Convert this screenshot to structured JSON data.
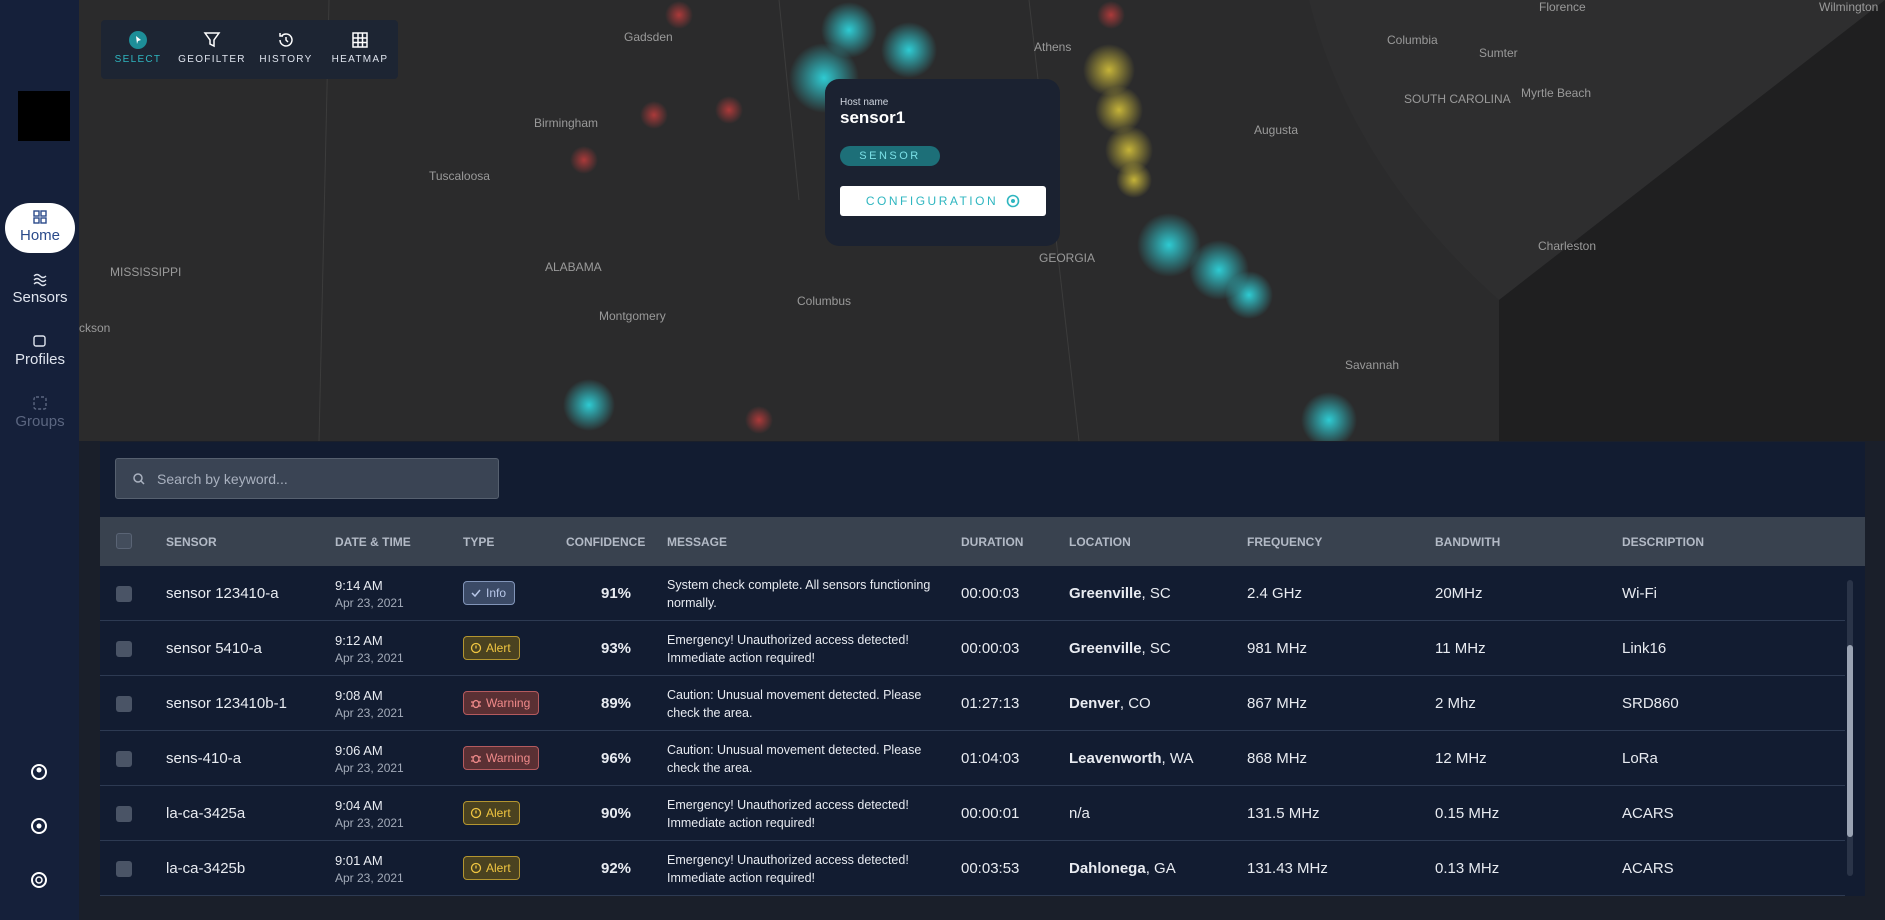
{
  "sidebar": {
    "items": [
      "Home",
      "Sensors",
      "Profiles",
      "Groups"
    ]
  },
  "toolbar": {
    "items": [
      "SELECT",
      "GEOFILTER",
      "HISTORY",
      "HEATMAP"
    ]
  },
  "map": {
    "labels": [
      "Florence",
      "Wilmington",
      "Gadsden",
      "Athens",
      "Columbia",
      "Sumter",
      "Myrtle Beach",
      "Birmingham",
      "Augusta",
      "SOUTH CAROLINA",
      "Tuscaloosa",
      "Charleston",
      "MISSISSIPPI",
      "ALABAMA",
      "GEORGIA",
      "Columbus",
      "Montgomery",
      "Savannah",
      "ckson"
    ]
  },
  "popup": {
    "host_label": "Host name",
    "host_name": "sensor1",
    "badge": "SENSOR",
    "button": "CONFIGURATION"
  },
  "search": {
    "placeholder": "Search by keyword..."
  },
  "table": {
    "headers": [
      "SENSOR",
      "DATE & TIME",
      "TYPE",
      "CONFIDENCE",
      "MESSAGE",
      "DURATION",
      "LOCATION",
      "FREQUENCY",
      "BANDWITH",
      "DESCRIPTION"
    ],
    "rows": [
      {
        "sensor": "sensor 123410-a",
        "time": "9:14 AM",
        "date": "Apr 23, 2021",
        "type": "Info",
        "confidence": "91%",
        "message": "System check complete. All sensors functioning normally.",
        "duration": "00:00:03",
        "location": {
          "city": "Greenville",
          "rest": ", SC"
        },
        "frequency": "2.4 GHz",
        "bandwidth": "20MHz",
        "description": "Wi-Fi"
      },
      {
        "sensor": "sensor 5410-a",
        "time": "9:12 AM",
        "date": "Apr 23, 2021",
        "type": "Alert",
        "confidence": "93%",
        "message": "Emergency! Unauthorized access detected! Immediate action required!",
        "duration": "00:00:03",
        "location": {
          "city": "Greenville",
          "rest": ", SC"
        },
        "frequency": "981 MHz",
        "bandwidth": "11 MHz",
        "description": "Link16"
      },
      {
        "sensor": "sensor 123410b-1",
        "time": "9:08 AM",
        "date": "Apr 23, 2021",
        "type": "Warning",
        "confidence": "89%",
        "message": "Caution: Unusual movement detected. Please check the area.",
        "duration": "01:27:13",
        "location": {
          "city": "Denver",
          "rest": ", CO"
        },
        "frequency": "867 MHz",
        "bandwidth": "2 Mhz",
        "description": "SRD860"
      },
      {
        "sensor": "sens-410-a",
        "time": "9:06 AM",
        "date": "Apr 23, 2021",
        "type": "Warning",
        "confidence": "96%",
        "message": "Caution: Unusual movement detected. Please check the area.",
        "duration": "01:04:03",
        "location": {
          "city": "Leavenworth",
          "rest": ", WA"
        },
        "frequency": "868 MHz",
        "bandwidth": "12 MHz",
        "description": "LoRa"
      },
      {
        "sensor": "la-ca-3425a",
        "time": "9:04 AM",
        "date": "Apr 23, 2021",
        "type": "Alert",
        "confidence": "90%",
        "message": "Emergency! Unauthorized access detected! Immediate action required!",
        "duration": "00:00:01",
        "location": {
          "rest": "n/a"
        },
        "frequency": "131.5 MHz",
        "bandwidth": "0.15 MHz",
        "description": "ACARS"
      },
      {
        "sensor": "la-ca-3425b",
        "time": "9:01 AM",
        "date": "Apr 23, 2021",
        "type": "Alert",
        "confidence": "92%",
        "message": "Emergency! Unauthorized access detected! Immediate action required!",
        "duration": "00:03:53",
        "location": {
          "city": "Dahlonega",
          "rest": ", GA"
        },
        "frequency": "131.43 MHz",
        "bandwidth": "0.13 MHz",
        "description": "ACARS"
      }
    ]
  }
}
